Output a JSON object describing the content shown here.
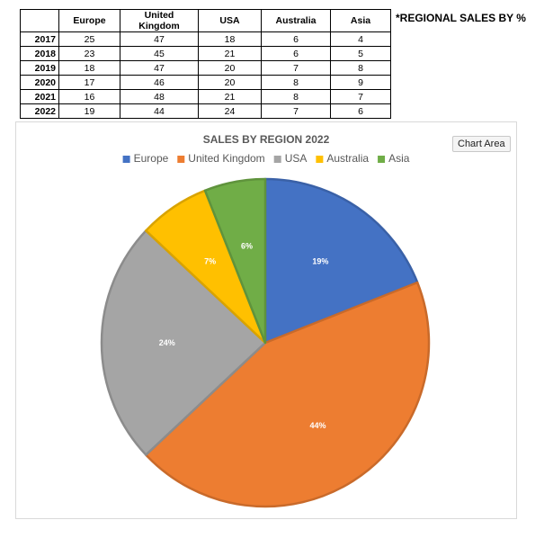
{
  "table": {
    "headers": [
      "",
      "Europe",
      "United Kingdom",
      "USA",
      "Australia",
      "Asia"
    ],
    "rows": [
      {
        "year": "2017",
        "values": [
          25,
          47,
          18,
          6,
          4
        ]
      },
      {
        "year": "2018",
        "values": [
          23,
          45,
          21,
          6,
          5
        ]
      },
      {
        "year": "2019",
        "values": [
          18,
          47,
          20,
          7,
          8
        ]
      },
      {
        "year": "2020",
        "values": [
          17,
          46,
          20,
          8,
          9
        ]
      },
      {
        "year": "2021",
        "values": [
          16,
          48,
          21,
          8,
          7
        ]
      },
      {
        "year": "2022",
        "values": [
          19,
          44,
          24,
          7,
          6
        ]
      }
    ]
  },
  "note": "*REGIONAL SALES BY %",
  "tooltip": "Chart Area",
  "chart_data": {
    "type": "pie",
    "title": "SALES BY REGION 2022",
    "categories": [
      "Europe",
      "United Kingdom",
      "USA",
      "Australia",
      "Asia"
    ],
    "values": [
      19,
      44,
      24,
      7,
      6
    ],
    "data_labels": [
      "19%",
      "44%",
      "24%",
      "7%",
      "6%"
    ],
    "colors": [
      "#4472c4",
      "#ed7d31",
      "#a5a5a5",
      "#ffc000",
      "#70ad47"
    ],
    "legend_position": "top"
  }
}
